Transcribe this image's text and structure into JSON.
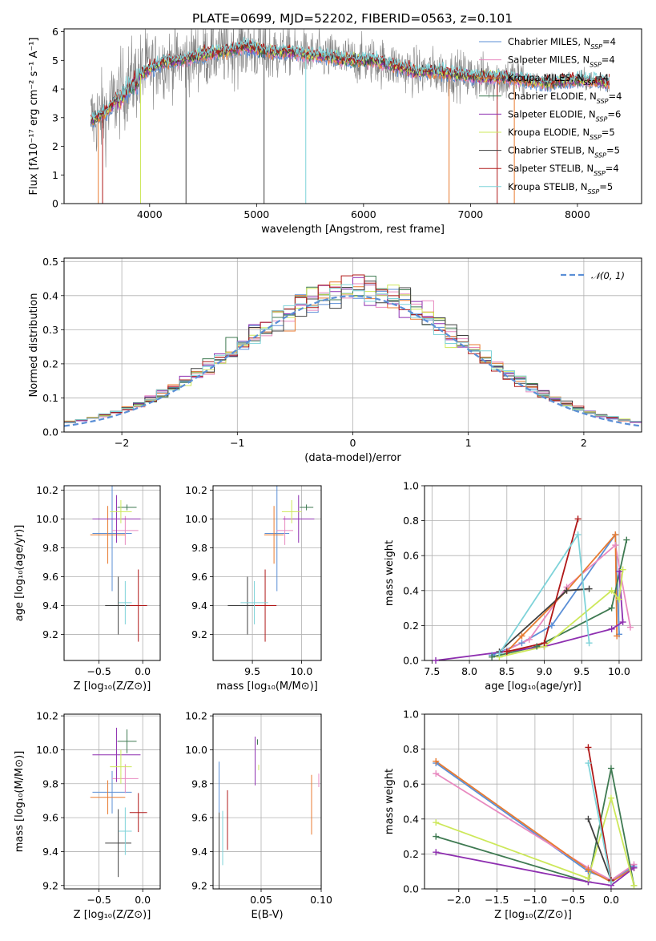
{
  "figure_title": "PLATE=0699, MJD=52202, FIBERID=0563, z=0.101",
  "colors": {
    "chabrier_miles": "#5b8fd6",
    "salpeter_miles": "#e88ac0",
    "kroupa_miles": "#e87b30",
    "chabrier_elodie": "#3f7a52",
    "salpeter_elodie": "#8e2fb0",
    "kroupa_elodie": "#cde85a",
    "chabrier_stelib": "#404040",
    "salpeter_stelib": "#b01818",
    "kroupa_stelib": "#7fd3d9",
    "data": "#808080",
    "normal": "#5b8fd6"
  },
  "chart_data": [
    {
      "id": "spectrum",
      "type": "line",
      "title": "PLATE=0699, MJD=52202, FIBERID=0563, z=0.101",
      "xlabel": "wavelength [Angstrom, rest frame]",
      "ylabel": "Flux [fλ10⁻¹⁷ erg cm⁻² s⁻¹ A⁻¹]",
      "xlim": [
        3200,
        8600
      ],
      "ylim": [
        0,
        6.1
      ],
      "xticks": [
        "4000",
        "5000",
        "6000",
        "7000",
        "8000"
      ],
      "yticks": [
        "0",
        "1",
        "2",
        "3",
        "4",
        "5",
        "6"
      ],
      "grid": false,
      "legend_position": "right",
      "legend": [
        "Chabrier MILES, N_SSP=4",
        "Salpeter MILES, N_SSP=4",
        "Kroupa MILES, N_SSP=4",
        "Chabrier ELODIE, N_SSP=4",
        "Salpeter ELODIE, N_SSP=6",
        "Kroupa ELODIE, N_SSP=5",
        "Chabrier STELIB, N_SSP=5",
        "Salpeter STELIB, N_SSP=4",
        "Kroupa STELIB, N_SSP=5"
      ],
      "continuum": {
        "x": [
          3450,
          3600,
          3700,
          3800,
          3950,
          4100,
          4300,
          4500,
          4700,
          4900,
          5100,
          5300,
          5500,
          5700,
          5900,
          6100,
          6300,
          6500,
          6700,
          6900,
          7100,
          7300,
          7500,
          7700,
          7900,
          8100,
          8300
        ],
        "y": [
          2.9,
          3.2,
          3.7,
          4.2,
          4.6,
          4.9,
          5.0,
          5.2,
          5.3,
          5.5,
          5.3,
          5.3,
          5.2,
          5.1,
          5.0,
          5.0,
          4.8,
          4.6,
          4.6,
          4.5,
          4.4,
          4.4,
          4.3,
          4.2,
          4.3,
          4.3,
          4.2
        ]
      }
    },
    {
      "id": "residuals",
      "type": "bar",
      "xlabel": "(data-model)/error",
      "ylabel": "Normed distribution",
      "xlim": [
        -2.5,
        2.5
      ],
      "ylim": [
        0,
        0.51
      ],
      "xticks": [
        "−2",
        "−1",
        "0",
        "1",
        "2"
      ],
      "yticks": [
        "0.0",
        "0.1",
        "0.2",
        "0.3",
        "0.4",
        "0.5"
      ],
      "grid": true,
      "legend_position": "top-right",
      "legend": [
        "𝒩(0, 1)"
      ],
      "bin_width": 0.1,
      "bin_start": -2.5
    },
    {
      "id": "age_vs_Z",
      "type": "scatter",
      "xlabel": "Z [log₁₀(Z/Z⊙)]",
      "ylabel": "age  [log₁₀(age/yr)]",
      "xlim": [
        -0.9,
        0.2
      ],
      "ylim": [
        9.02,
        10.23
      ],
      "xticks": [
        "−0.5",
        "0.0"
      ],
      "yticks": [
        "9.2",
        "9.4",
        "9.6",
        "9.8",
        "10.0",
        "10.2"
      ],
      "grid": true
    },
    {
      "id": "age_vs_mass",
      "type": "scatter",
      "xlabel": "mass [log₁₀(M/M⊙)]",
      "xlim": [
        9.1,
        10.2
      ],
      "ylim": [
        9.02,
        10.23
      ],
      "xticks": [
        "9.5",
        "10.0"
      ],
      "yticks": [
        "9.2",
        "9.4",
        "9.6",
        "9.8",
        "10.0",
        "10.2"
      ],
      "grid": true
    },
    {
      "id": "massweight_vs_age",
      "type": "line",
      "xlabel": "age  [log₁₀(age/yr)]",
      "ylabel": "mass weight",
      "xlim": [
        7.4,
        10.3
      ],
      "ylim": [
        0,
        1.0
      ],
      "xticks": [
        "7.5",
        "8.0",
        "8.5",
        "9.0",
        "9.5",
        "10.0"
      ],
      "yticks": [
        "0.0",
        "0.2",
        "0.4",
        "0.6",
        "0.8",
        "1.0"
      ],
      "grid": true
    },
    {
      "id": "mass_vs_Z",
      "type": "scatter",
      "xlabel": "Z [log₁₀(Z/Z⊙)]",
      "ylabel": "mass [log₁₀(M/M⊙)]",
      "xlim": [
        -0.9,
        0.2
      ],
      "ylim": [
        9.18,
        10.21
      ],
      "xticks": [
        "−0.5",
        "0.0"
      ],
      "yticks": [
        "9.2",
        "9.4",
        "9.6",
        "9.8",
        "10.0",
        "10.2"
      ],
      "grid": true
    },
    {
      "id": "mass_vs_ebv",
      "type": "scatter",
      "xlabel": "E(B-V)",
      "xlim": [
        0.01,
        0.1
      ],
      "ylim": [
        9.18,
        10.21
      ],
      "xticks": [
        "0.05",
        "0.10"
      ],
      "yticks": [
        "9.2",
        "9.4",
        "9.6",
        "9.8",
        "10.0",
        "10.2"
      ],
      "grid": true
    },
    {
      "id": "massweight_vs_Z",
      "type": "line",
      "xlabel": "Z [log₁₀(Z/Z⊙)]",
      "ylabel": "mass weight",
      "xlim": [
        -2.45,
        0.4
      ],
      "ylim": [
        0,
        1.0
      ],
      "xticks": [
        "−2.0",
        "−1.5",
        "−1.0",
        "−0.5",
        "0.0"
      ],
      "yticks": [
        "0.0",
        "0.2",
        "0.4",
        "0.6",
        "0.8",
        "1.0"
      ],
      "grid": true
    }
  ],
  "models": [
    {
      "key": "chabrier_miles",
      "age": [
        8.3,
        8.7,
        9.1,
        9.95,
        10.0
      ],
      "w_age": [
        0.03,
        0.1,
        0.2,
        0.72,
        0.15
      ],
      "Z": [
        -2.3,
        -0.3,
        0.0,
        0.3
      ],
      "w_Z": [
        0.72,
        0.1,
        0.05,
        0.13
      ],
      "mean_Z": -0.35,
      "Z_err": 0.45,
      "mean_age": 9.9,
      "age_err": 0.8,
      "mean_mass": 9.75,
      "mass_err": 0.25,
      "ebv": 0.015,
      "ebv_err": 0.3
    },
    {
      "key": "salpeter_miles",
      "age": [
        8.4,
        8.8,
        9.3,
        9.95,
        10.15
      ],
      "w_age": [
        0.04,
        0.12,
        0.42,
        0.66,
        0.19
      ],
      "Z": [
        -2.3,
        -0.3,
        0.0,
        0.3
      ],
      "w_Z": [
        0.66,
        0.12,
        0.05,
        0.14
      ],
      "mean_Z": -0.2,
      "Z_err": 0.3,
      "mean_age": 9.92,
      "age_err": 0.2,
      "mean_mass": 9.83,
      "mass_err": 0.17,
      "ebv": 0.098,
      "ebv_err": 0.05
    },
    {
      "key": "kroupa_miles",
      "age": [
        8.5,
        8.7,
        9.3,
        9.95,
        9.97
      ],
      "w_age": [
        0.05,
        0.14,
        0.4,
        0.72,
        0.14
      ],
      "Z": [
        -2.3,
        -0.3,
        0.0,
        0.3
      ],
      "w_Z": [
        0.73,
        0.11,
        0.04,
        0.12
      ],
      "mean_Z": -0.4,
      "Z_err": 0.4,
      "mean_age": 9.89,
      "age_err": 0.4,
      "mean_mass": 9.72,
      "mass_err": 0.2,
      "ebv": 0.092,
      "ebv_err": 0.22
    },
    {
      "key": "chabrier_elodie",
      "age": [
        8.3,
        8.9,
        9.9,
        10.1
      ],
      "w_age": [
        0.02,
        0.08,
        0.3,
        0.69
      ],
      "Z": [
        -2.3,
        -0.3,
        0.0,
        0.3
      ],
      "w_Z": [
        0.3,
        0.04,
        0.69,
        0.02
      ],
      "mean_Z": -0.18,
      "Z_err": 0.22,
      "mean_age": 10.08,
      "age_err": 0.04,
      "mean_mass": 10.05,
      "mass_err": 0.14,
      "ebv": 0.047,
      "ebv_err": 0.02
    },
    {
      "key": "salpeter_elodie",
      "age": [
        7.55,
        9.0,
        9.9,
        10.05,
        10.0
      ],
      "w_age": [
        0.0,
        0.08,
        0.18,
        0.22,
        0.51
      ],
      "Z": [
        -2.3,
        -0.3,
        0.0,
        0.3
      ],
      "w_Z": [
        0.21,
        0.04,
        0.02,
        0.12
      ],
      "mean_Z": -0.3,
      "Z_err": 0.55,
      "mean_age": 10.0,
      "age_err": 0.33,
      "mean_mass": 9.97,
      "mass_err": 0.32,
      "ebv": 0.045,
      "ebv_err": 0.18
    },
    {
      "key": "kroupa_elodie",
      "age": [
        8.4,
        9.0,
        9.9,
        10.0,
        10.05
      ],
      "w_age": [
        0.02,
        0.08,
        0.4,
        0.35,
        0.52
      ],
      "Z": [
        -2.3,
        -0.3,
        0.0,
        0.3
      ],
      "w_Z": [
        0.38,
        0.06,
        0.52,
        0.02
      ],
      "mean_Z": -0.25,
      "Z_err": 0.25,
      "mean_age": 10.05,
      "age_err": 0.16,
      "mean_mass": 9.9,
      "mass_err": 0.2,
      "ebv": 0.048,
      "ebv_err": 0.02
    },
    {
      "key": "chabrier_stelib",
      "age": [
        8.4,
        9.3,
        9.6
      ],
      "w_age": [
        0.05,
        0.4,
        0.41
      ],
      "Z": [
        -0.3,
        0.0
      ],
      "w_Z": [
        0.4,
        0.05
      ],
      "mean_Z": -0.28,
      "Z_err": 0.3,
      "mean_age": 9.4,
      "age_err": 0.4,
      "mean_mass": 9.45,
      "mass_err": 0.4,
      "ebv": 0.015,
      "ebv_err": 0.3
    },
    {
      "key": "salpeter_stelib",
      "age": [
        8.5,
        9.0,
        9.45
      ],
      "w_age": [
        0.05,
        0.1,
        0.81
      ],
      "Z": [
        -0.3,
        0.0
      ],
      "w_Z": [
        0.81,
        0.05
      ],
      "mean_Z": -0.05,
      "Z_err": 0.2,
      "mean_age": 9.4,
      "age_err": 0.5,
      "mean_mass": 9.63,
      "mass_err": 0.23,
      "ebv": 0.022,
      "ebv_err": 0.22
    },
    {
      "key": "kroupa_stelib",
      "age": [
        8.4,
        9.45,
        9.6
      ],
      "w_age": [
        0.04,
        0.72,
        0.1
      ],
      "Z": [
        -0.3,
        0.0
      ],
      "w_Z": [
        0.72,
        0.04
      ],
      "mean_Z": -0.2,
      "Z_err": 0.15,
      "mean_age": 9.42,
      "age_err": 0.3,
      "mean_mass": 9.52,
      "mass_err": 0.28,
      "ebv": 0.018,
      "ebv_err": 0.2
    }
  ]
}
